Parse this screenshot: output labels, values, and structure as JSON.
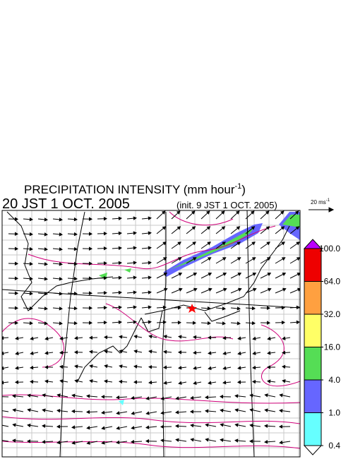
{
  "title": {
    "text": "PRECIPITATION INTENSITY (mm hour",
    "superscript": "-1",
    "close": ")"
  },
  "valid_time": "20 JST 1 OCT. 2005",
  "init_time": "(init. 9 JST 1 OCT. 2005)",
  "reference_vector": {
    "label": "20 ms",
    "superscript": "-1"
  },
  "colorbar": {
    "levels": [
      {
        "value": 100,
        "label": "100.0"
      },
      {
        "value": 64,
        "label": "64.0"
      },
      {
        "value": 32,
        "label": "32.0"
      },
      {
        "value": 16,
        "label": "16.0"
      },
      {
        "value": 4,
        "label": "4.0"
      },
      {
        "value": 1,
        "label": "1.0"
      },
      {
        "value": 0.4,
        "label": "0.4"
      }
    ],
    "colors": [
      "#ee0000",
      "#ffa040",
      "#ffff66",
      "#55dd55",
      "#6666ff",
      "#66ffff"
    ],
    "over_color": "#bb00ff",
    "under_color": "#ffffff"
  }
}
